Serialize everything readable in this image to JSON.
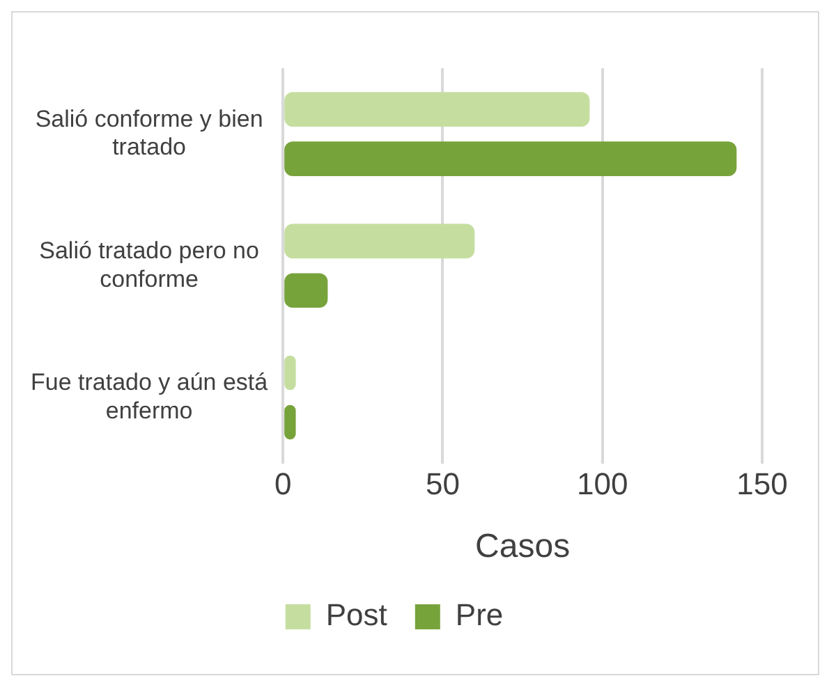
{
  "chart_data": {
    "type": "bar",
    "orientation": "horizontal",
    "categories": [
      "Salió conforme y bien tratado",
      "Salió tratado pero no conforme",
      "Fue tratado y aún está enfermo"
    ],
    "series": [
      {
        "name": "Post",
        "color": "#c5dea0",
        "values": [
          96,
          60,
          4
        ]
      },
      {
        "name": "Pre",
        "color": "#77a33b",
        "values": [
          142,
          14,
          4
        ]
      }
    ],
    "xlabel": "Casos",
    "xlim": [
      0,
      150
    ],
    "xticks": [
      0,
      50,
      100,
      150
    ],
    "grid": "x",
    "legend": "bottom"
  }
}
